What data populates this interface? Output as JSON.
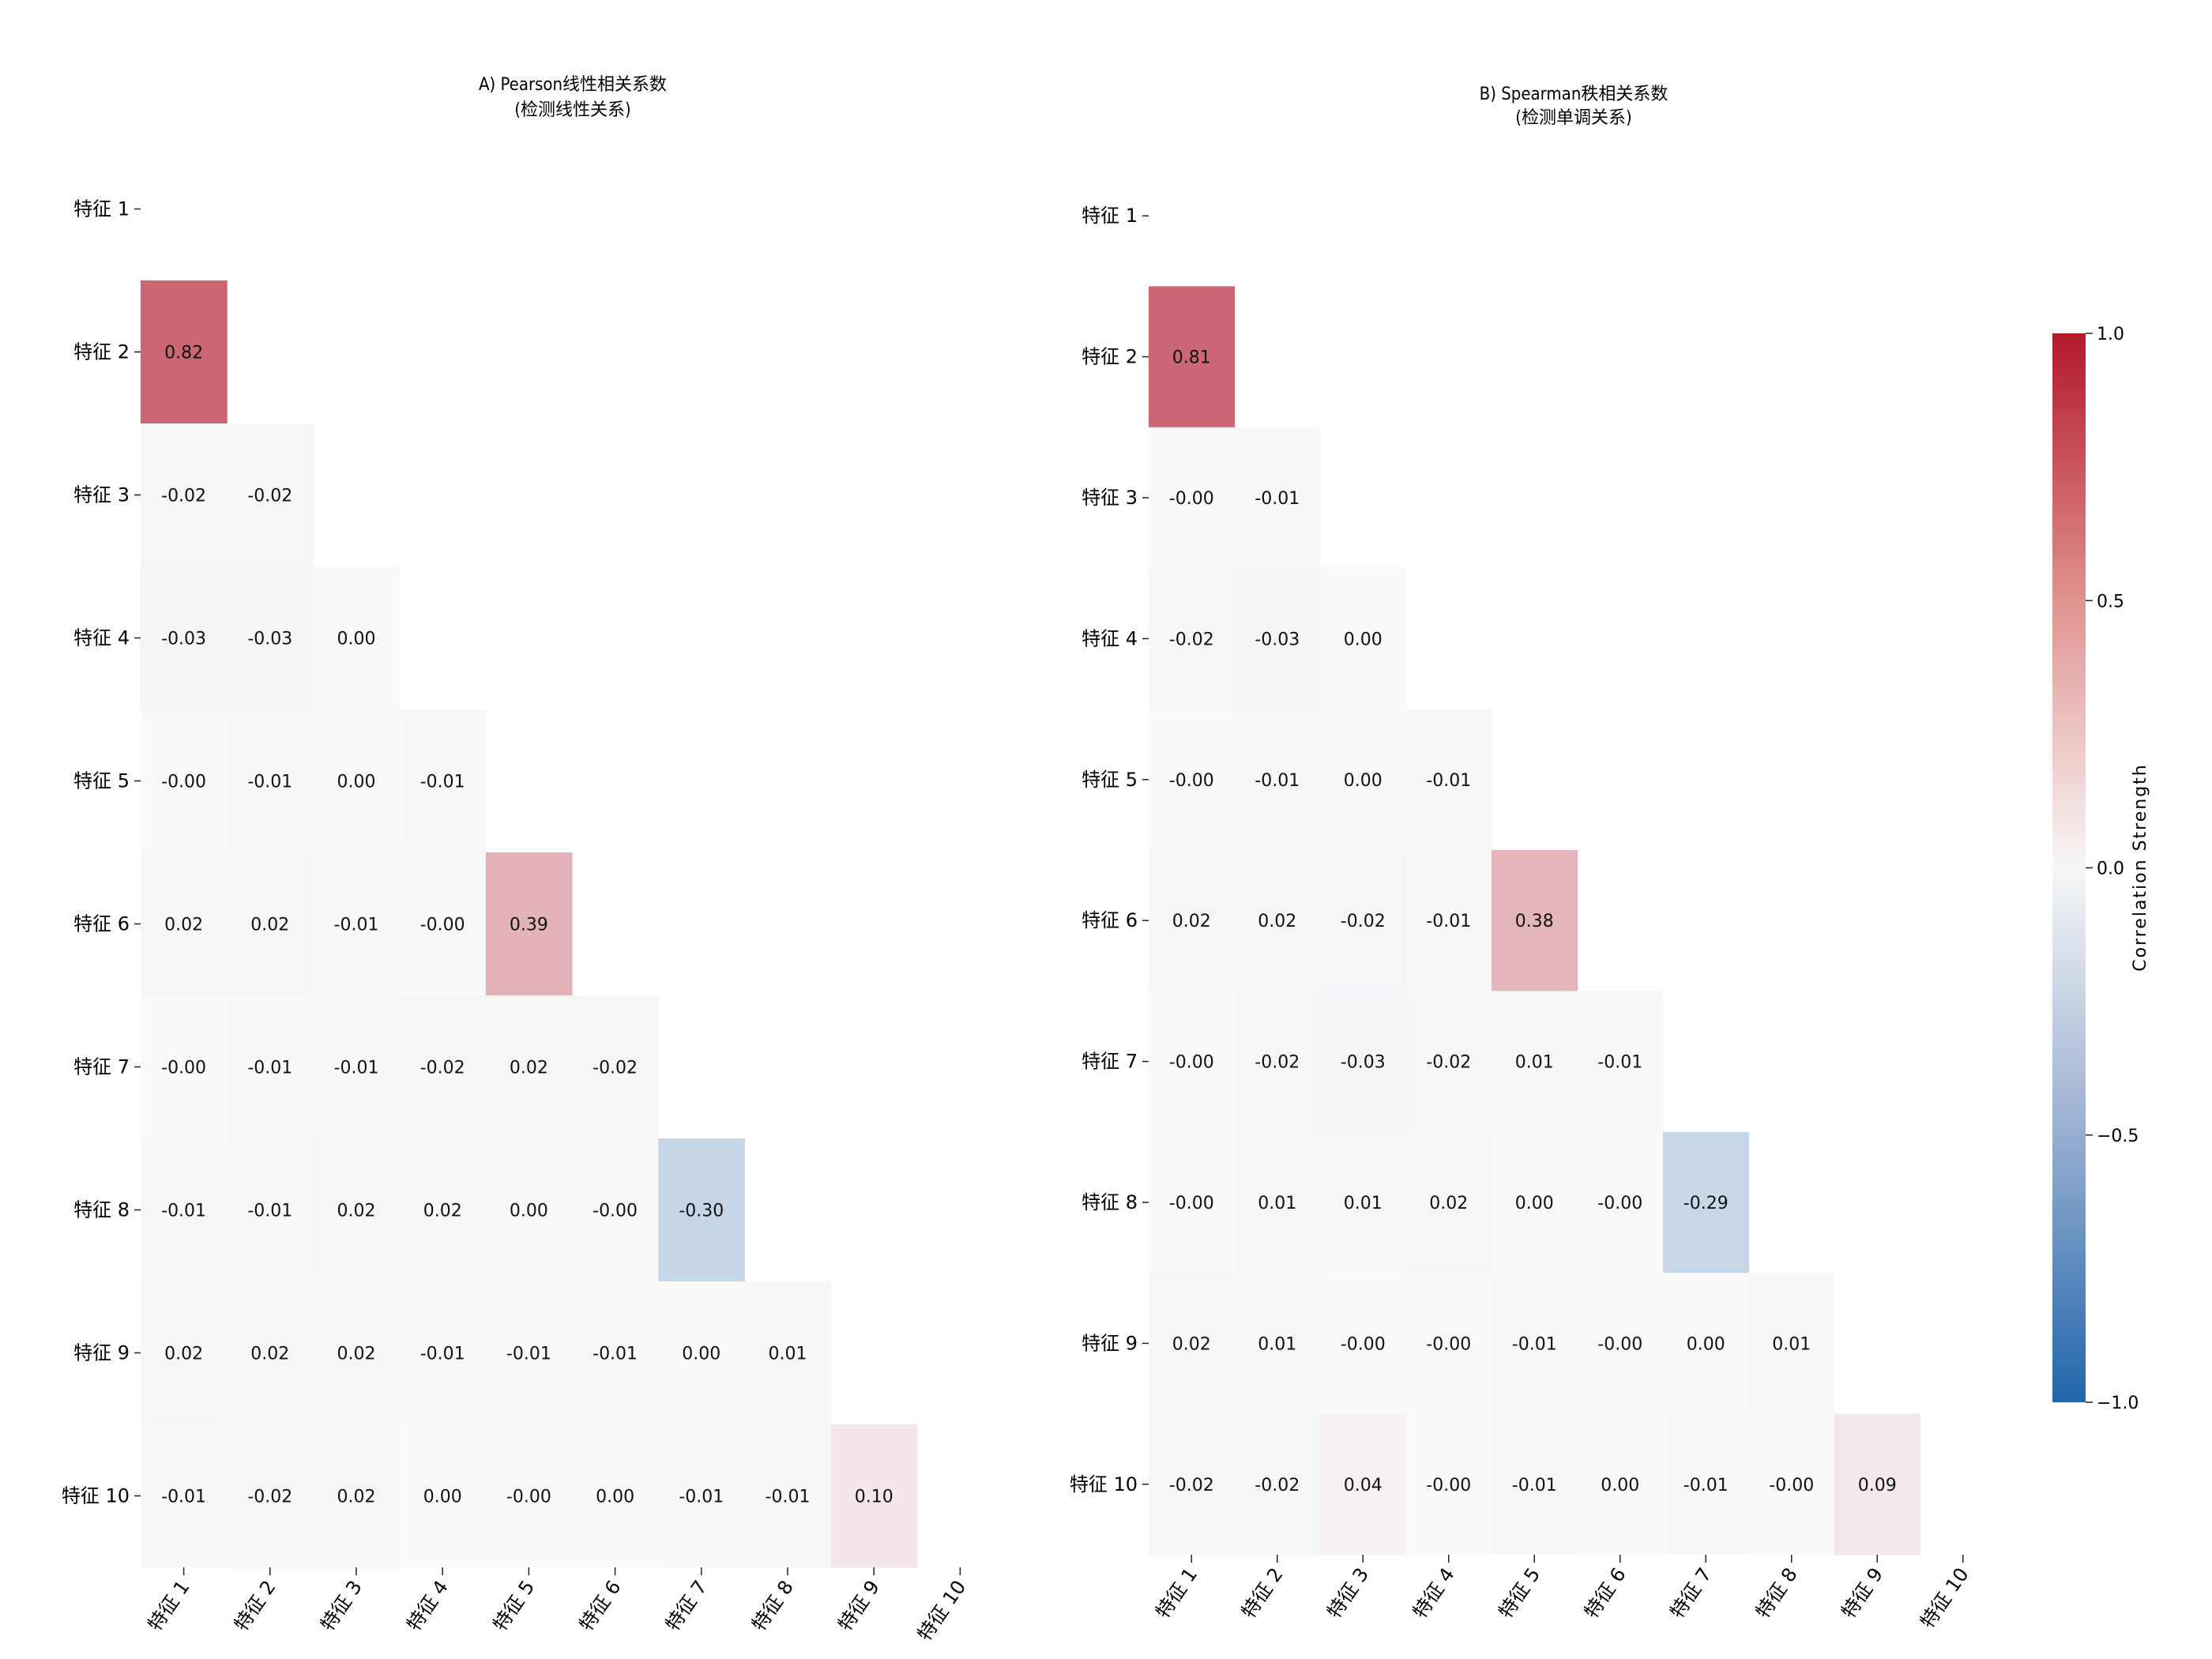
{
  "chart_data": [
    {
      "type": "heatmap",
      "title": "A) Pearson线性相关系数",
      "subtitle": "(检测线性关系)",
      "labels": [
        "特征 1",
        "特征 2",
        "特征 3",
        "特征 4",
        "特征 5",
        "特征 6",
        "特征 7",
        "特征 8",
        "特征 9",
        "特征 10"
      ],
      "mask": "upper-triangle-including-diagonal",
      "matrix": [
        [],
        [
          0.82
        ],
        [
          -0.02,
          -0.02
        ],
        [
          -0.03,
          -0.03,
          0.0
        ],
        [
          -0.0,
          -0.01,
          0.0,
          -0.01
        ],
        [
          0.02,
          0.02,
          -0.01,
          -0.0,
          0.39
        ],
        [
          -0.0,
          -0.01,
          -0.01,
          -0.02,
          0.02,
          -0.02
        ],
        [
          -0.01,
          -0.01,
          0.02,
          0.02,
          0.0,
          -0.0,
          -0.3
        ],
        [
          0.02,
          0.02,
          0.02,
          -0.01,
          -0.01,
          -0.01,
          0.0,
          0.01
        ],
        [
          -0.01,
          -0.02,
          0.02,
          0.0,
          -0.0,
          0.0,
          -0.01,
          -0.01,
          0.1
        ]
      ],
      "annotations": [
        [],
        [
          "0.82"
        ],
        [
          "-0.02",
          "-0.02"
        ],
        [
          "-0.03",
          "-0.03",
          "0.00"
        ],
        [
          "-0.00",
          "-0.01",
          "0.00",
          "-0.01"
        ],
        [
          "0.02",
          "0.02",
          "-0.01",
          "-0.00",
          "0.39"
        ],
        [
          "-0.00",
          "-0.01",
          "-0.01",
          "-0.02",
          "0.02",
          "-0.02"
        ],
        [
          "-0.01",
          "-0.01",
          "0.02",
          "0.02",
          "0.00",
          "-0.00",
          "-0.30"
        ],
        [
          "0.02",
          "0.02",
          "0.02",
          "-0.01",
          "-0.01",
          "-0.01",
          "0.00",
          "0.01"
        ],
        [
          "-0.01",
          "-0.02",
          "0.02",
          "0.00",
          "-0.00",
          "0.00",
          "-0.01",
          "-0.01",
          "0.10"
        ]
      ]
    },
    {
      "type": "heatmap",
      "title": "B) Spearman秩相关系数",
      "subtitle": "(检测单调关系)",
      "labels": [
        "特征 1",
        "特征 2",
        "特征 3",
        "特征 4",
        "特征 5",
        "特征 6",
        "特征 7",
        "特征 8",
        "特征 9",
        "特征 10"
      ],
      "mask": "upper-triangle-including-diagonal",
      "matrix": [
        [],
        [
          0.81
        ],
        [
          -0.0,
          -0.01
        ],
        [
          -0.02,
          -0.03,
          0.0
        ],
        [
          -0.0,
          -0.01,
          0.0,
          -0.01
        ],
        [
          0.02,
          0.02,
          -0.02,
          -0.01,
          0.38
        ],
        [
          -0.0,
          -0.02,
          -0.03,
          -0.02,
          0.01,
          -0.01
        ],
        [
          -0.0,
          0.01,
          0.01,
          0.02,
          0.0,
          -0.0,
          -0.29
        ],
        [
          0.02,
          0.01,
          -0.0,
          -0.0,
          -0.01,
          -0.0,
          0.0,
          0.01
        ],
        [
          -0.02,
          -0.02,
          0.04,
          -0.0,
          -0.01,
          0.0,
          -0.01,
          -0.0,
          0.09
        ]
      ],
      "annotations": [
        [],
        [
          "0.81"
        ],
        [
          "-0.00",
          "-0.01"
        ],
        [
          "-0.02",
          "-0.03",
          "0.00"
        ],
        [
          "-0.00",
          "-0.01",
          "0.00",
          "-0.01"
        ],
        [
          "0.02",
          "0.02",
          "-0.02",
          "-0.01",
          "0.38"
        ],
        [
          "-0.00",
          "-0.02",
          "-0.03",
          "-0.02",
          "0.01",
          "-0.01"
        ],
        [
          "-0.00",
          "0.01",
          "0.01",
          "0.02",
          "0.00",
          "-0.00",
          "-0.29"
        ],
        [
          "0.02",
          "0.01",
          "-0.00",
          "-0.00",
          "-0.01",
          "-0.00",
          "0.00",
          "0.01"
        ],
        [
          "-0.02",
          "-0.02",
          "0.04",
          "-0.00",
          "-0.01",
          "0.00",
          "-0.01",
          "-0.00",
          "0.09"
        ]
      ]
    }
  ],
  "colorbar": {
    "label": "Correlation Strength",
    "vmin": -1.0,
    "vmax": 1.0,
    "ticks": [
      1.0,
      0.5,
      0.0,
      -0.5,
      -1.0
    ],
    "tick_labels": [
      "1.0",
      "0.5",
      "0.0",
      "−0.5",
      "−1.0"
    ],
    "colormap": "coolwarm",
    "colors": {
      "high": "#b2182b",
      "mid": "#f7f7f7",
      "low": "#2166ac"
    }
  }
}
